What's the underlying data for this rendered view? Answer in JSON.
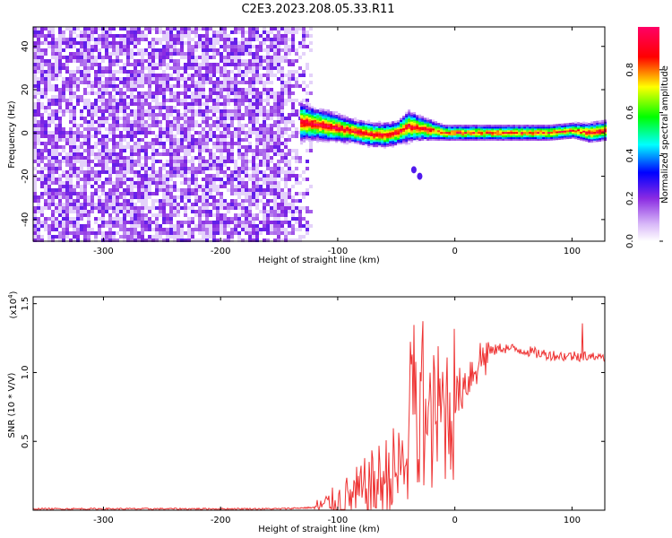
{
  "title": "C2E3.2023.208.05.33.R11",
  "chart_data": [
    {
      "type": "heatmap",
      "xlabel": "Height of straight line (km)",
      "ylabel": "Frequency (Hz)",
      "xlim": [
        -360,
        128
      ],
      "ylim": [
        -50,
        49
      ],
      "xticks": [
        -300,
        -200,
        -100,
        0,
        100
      ],
      "yticks": [
        -40,
        -20,
        0,
        20,
        40
      ],
      "colorbar": {
        "label": "Normalized spectral amplitude",
        "range": [
          0,
          1
        ],
        "ticks": [
          "0.0",
          "0.2",
          "0.4",
          "0.6",
          "0.8"
        ],
        "colormap": [
          "#ffffff",
          "#8a2be2",
          "#0000ff",
          "#00ffff",
          "#00ff00",
          "#ffff00",
          "#ff0000",
          "#ff00ff"
        ]
      },
      "noise_region_x": [
        -360,
        -122
      ],
      "ridge": {
        "x": [
          -132,
          -120,
          -110,
          -100,
          -90,
          -80,
          -70,
          -60,
          -50,
          -40,
          -30,
          -20,
          -10,
          0,
          20,
          40,
          60,
          80,
          100,
          115,
          128
        ],
        "y": [
          5,
          4,
          3,
          2,
          1,
          0,
          -1,
          -1,
          0,
          3,
          2,
          1,
          0,
          0,
          0,
          0,
          0,
          0,
          1,
          0,
          1
        ],
        "width": [
          10,
          8,
          8,
          7,
          6,
          6,
          6,
          6,
          6,
          8,
          6,
          5,
          4,
          4,
          4,
          4,
          4,
          4,
          4,
          5,
          5
        ]
      },
      "faint_features": [
        {
          "x": -35,
          "y": -17
        },
        {
          "x": -30,
          "y": -20
        }
      ]
    },
    {
      "type": "line",
      "xlabel": "Height of straight line (km)",
      "ylabel": "SNR (10 * V/V)",
      "y_multiplier": "(x10",
      "y_multiplier_exp": "4",
      "y_multiplier_close": ")",
      "xlim": [
        -360,
        128
      ],
      "ylim": [
        0,
        1.55
      ],
      "xticks": [
        -300,
        -200,
        -100,
        0,
        100
      ],
      "yticks": [
        "0.5",
        "1.0",
        "1.5"
      ],
      "ytick_values": [
        0.5,
        1.0,
        1.5
      ],
      "color": "#ee3333",
      "series": [
        {
          "x": [
            -360,
            -300,
            -250,
            -200,
            -150,
            -120,
            -100,
            -80,
            -60,
            -45,
            -35,
            -25,
            -15,
            0,
            10,
            20,
            30,
            40,
            50,
            60,
            70,
            80,
            90,
            100,
            110,
            120,
            128
          ],
          "y": [
            0.01,
            0.01,
            0.01,
            0.01,
            0.01,
            0.02,
            0.05,
            0.12,
            0.22,
            0.3,
            0.45,
            0.55,
            0.7,
            0.8,
            0.95,
            1.08,
            1.15,
            1.18,
            1.17,
            1.16,
            1.14,
            1.13,
            1.12,
            1.12,
            1.12,
            1.1,
            1.1
          ]
        }
      ]
    }
  ]
}
